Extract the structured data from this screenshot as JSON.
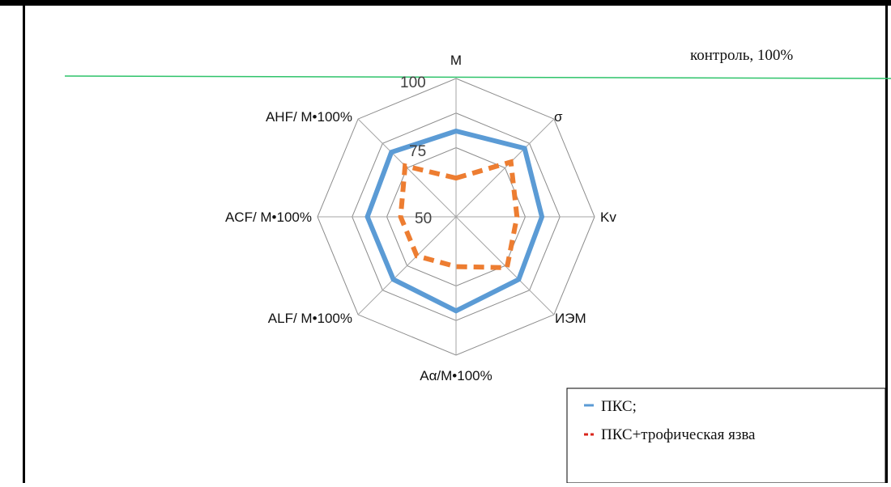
{
  "chart_data": {
    "type": "radar",
    "axes": [
      "М",
      "σ",
      "Kv",
      "ИЭМ",
      "Аα/М•100%",
      "ALF/ М•100%",
      "ACF/ М•100%",
      "AHF/ М•100%"
    ],
    "ticks": [
      "50",
      "75",
      "100"
    ],
    "rlim": [
      50,
      100
    ],
    "series": [
      {
        "name": "ПКС;",
        "values": [
          81,
          85,
          81,
          82,
          84,
          82,
          82,
          83
        ],
        "color": "#5b9bd5",
        "style": "solid"
      },
      {
        "name": "ПКС+трофическая язва",
        "values": [
          64,
          78,
          72,
          76,
          68,
          70,
          70,
          76
        ],
        "color": "#ed7d31",
        "style": "dashed"
      }
    ],
    "reference_line": {
      "label": "контроль, 100%",
      "color": "#2ec36a"
    },
    "legend_position": "bottom-right"
  }
}
